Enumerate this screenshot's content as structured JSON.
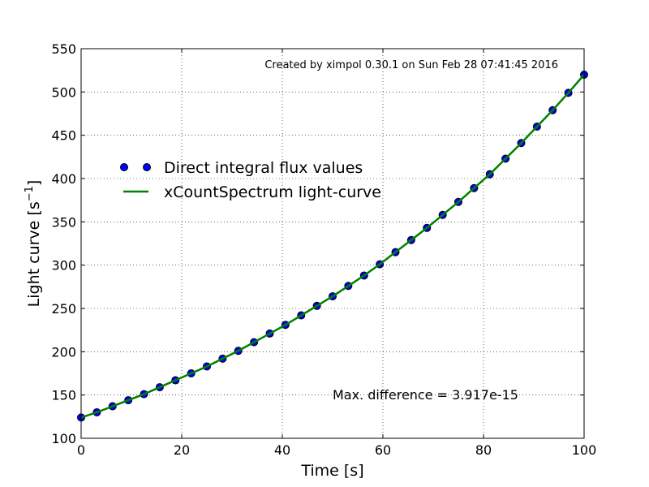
{
  "chart_data": {
    "type": "line",
    "xlabel": "Time [s]",
    "ylabel_main": "Light curve [s",
    "ylabel_sup": "−1",
    "ylabel_close": "]",
    "xlim": [
      0,
      100
    ],
    "ylim": [
      100,
      550
    ],
    "xticks": [
      0,
      20,
      40,
      60,
      80,
      100
    ],
    "yticks": [
      100,
      150,
      200,
      250,
      300,
      350,
      400,
      450,
      500,
      550
    ],
    "grid": "on",
    "legend_placement": "upper-left",
    "annotations": {
      "created": "Created by ximpol 0.30.1 on Sun Feb 28 07:41:45 2016",
      "max_diff": "Max. difference = 3.917e-15"
    },
    "series": [
      {
        "name": "Direct integral flux values",
        "style": "markers",
        "color": "#0000ff",
        "x": [
          0.0,
          3.125,
          6.25,
          9.375,
          12.5,
          15.625,
          18.75,
          21.875,
          25.0,
          28.125,
          31.25,
          34.375,
          37.5,
          40.625,
          43.75,
          46.875,
          50.0,
          53.125,
          56.25,
          59.375,
          62.5,
          65.625,
          68.75,
          71.875,
          75.0,
          78.125,
          81.25,
          84.375,
          87.5,
          90.625,
          93.75,
          96.875,
          100.0
        ],
        "values": [
          124,
          130,
          137,
          144,
          151,
          159,
          167,
          175,
          183,
          192,
          201,
          211,
          221,
          231,
          242,
          253,
          264,
          276,
          288,
          301,
          315,
          329,
          343,
          358,
          373,
          389,
          405,
          423,
          441,
          460,
          479,
          499,
          520
        ]
      },
      {
        "name": "xCountSpectrum light-curve",
        "style": "line",
        "color": "#008000",
        "x": [
          0.0,
          3.125,
          6.25,
          9.375,
          12.5,
          15.625,
          18.75,
          21.875,
          25.0,
          28.125,
          31.25,
          34.375,
          37.5,
          40.625,
          43.75,
          46.875,
          50.0,
          53.125,
          56.25,
          59.375,
          62.5,
          65.625,
          68.75,
          71.875,
          75.0,
          78.125,
          81.25,
          84.375,
          87.5,
          90.625,
          93.75,
          96.875,
          100.0
        ],
        "values": [
          124,
          130,
          137,
          144,
          151,
          159,
          167,
          175,
          183,
          192,
          201,
          211,
          221,
          231,
          242,
          253,
          264,
          276,
          288,
          301,
          315,
          329,
          343,
          358,
          373,
          389,
          405,
          423,
          441,
          460,
          479,
          499,
          520
        ]
      }
    ]
  }
}
